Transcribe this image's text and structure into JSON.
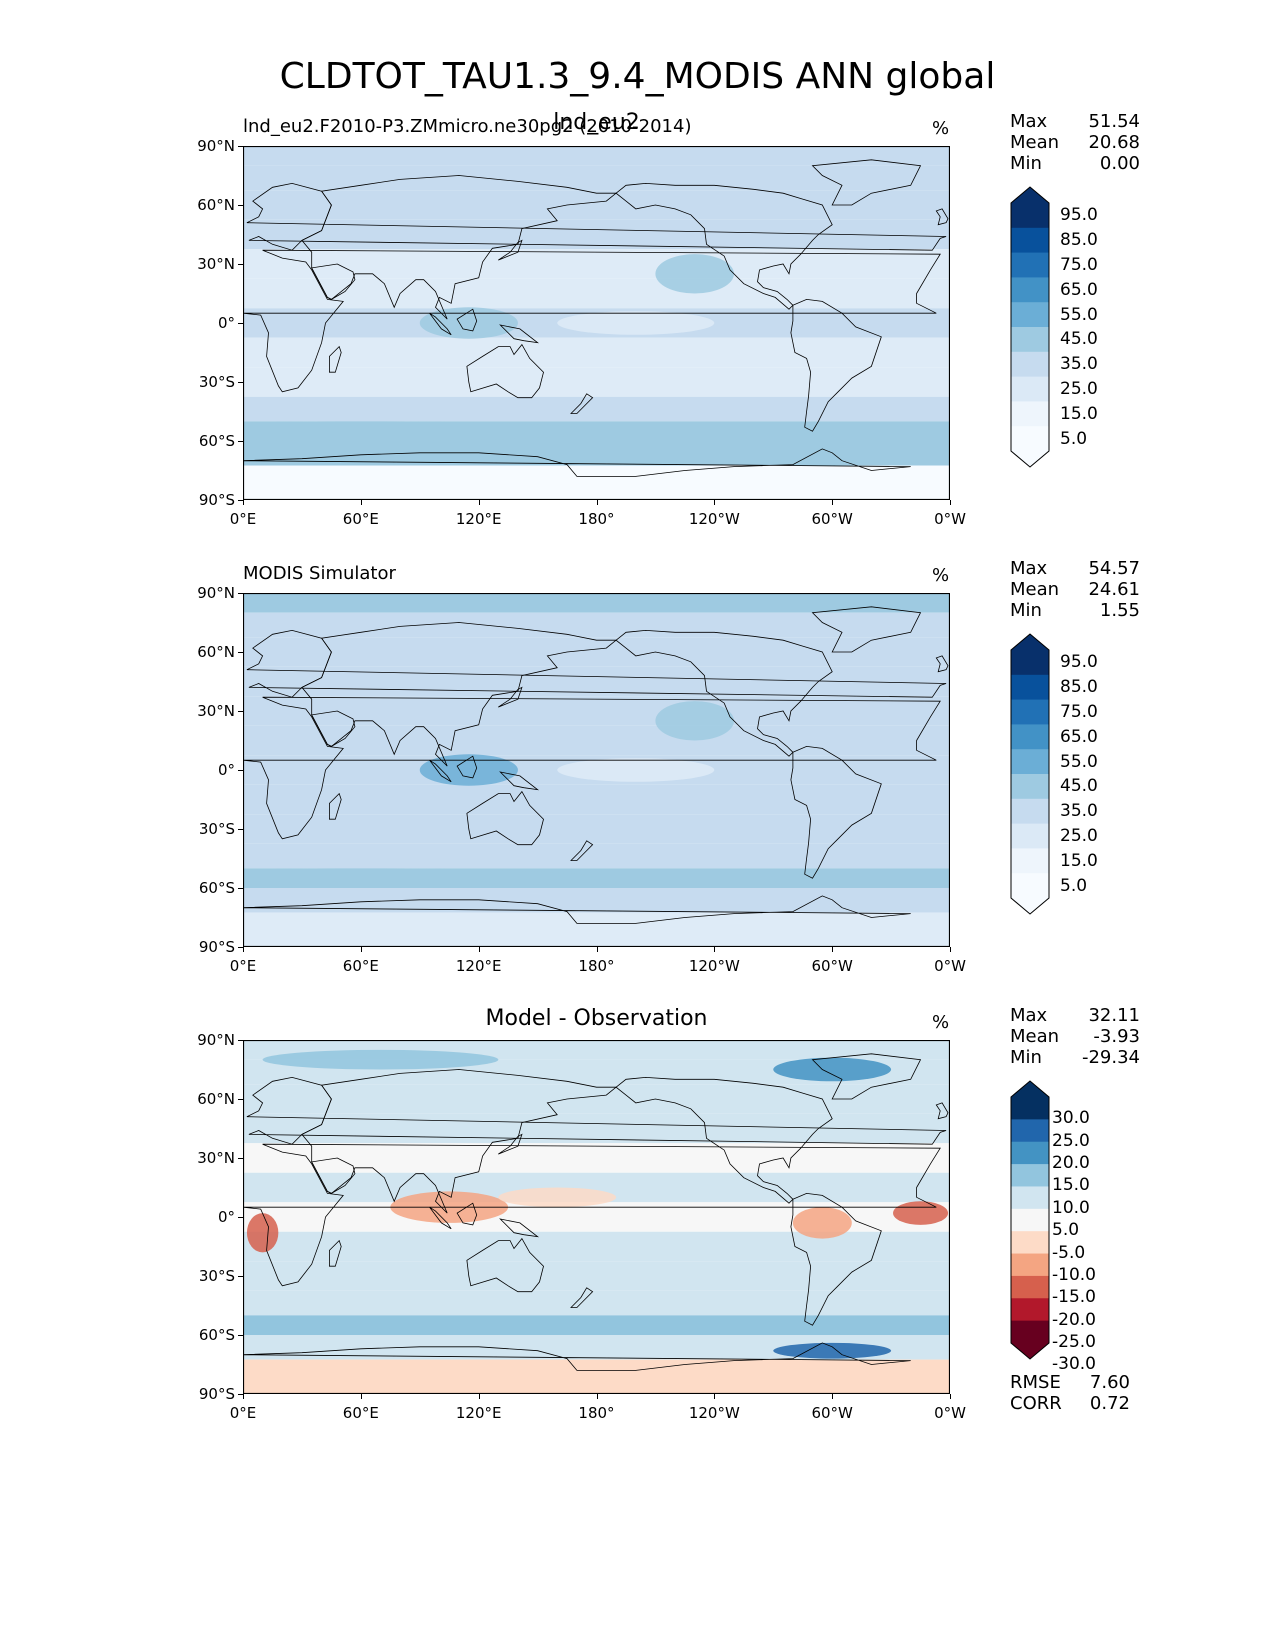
{
  "title": "CLDTOT_TAU1.3_9.4_MODIS ANN global",
  "colors": {
    "sequential_blues": [
      "#f7fbff",
      "#deebf7",
      "#c6dbef",
      "#9ecae1",
      "#6baed6",
      "#4292c6",
      "#2171b5",
      "#08519c",
      "#08306b"
    ],
    "diverging_RdBu": [
      "#67001f",
      "#b2182b",
      "#d6604d",
      "#f4a582",
      "#fddbc7",
      "#f7f7f7",
      "#d1e5f0",
      "#92c5de",
      "#4393c3",
      "#2166ac",
      "#053061"
    ],
    "land_outline": "#000000"
  },
  "panels": [
    {
      "id": "test",
      "left_title": "lnd_eu2.F2010-P3.ZMmicro.ne30pg2 (2010-2014)",
      "center_title": "lnd_eu2",
      "units": "%",
      "stats": {
        "max_label": "Max",
        "max": "51.54",
        "mean_label": "Mean",
        "mean": "20.68",
        "min_label": "Min",
        "min": "0.00"
      },
      "colorbar_labels": [
        "95.0",
        "85.0",
        "75.0",
        "65.0",
        "55.0",
        "45.0",
        "35.0",
        "25.0",
        "15.0",
        "5.0"
      ]
    },
    {
      "id": "reference",
      "left_title": "MODIS Simulator",
      "center_title": "",
      "units": "%",
      "stats": {
        "max_label": "Max",
        "max": "54.57",
        "mean_label": "Mean",
        "mean": "24.61",
        "min_label": "Min",
        "min": "1.55"
      },
      "colorbar_labels": [
        "95.0",
        "85.0",
        "75.0",
        "65.0",
        "55.0",
        "45.0",
        "35.0",
        "25.0",
        "15.0",
        "5.0"
      ]
    },
    {
      "id": "difference",
      "left_title": "",
      "center_title": "Model - Observation",
      "units": "%",
      "stats": {
        "max_label": "Max",
        "max": "32.11",
        "mean_label": "Mean",
        "mean": "-3.93",
        "min_label": "Min",
        "min": "-29.34"
      },
      "colorbar_labels": [
        "30.0",
        "25.0",
        "20.0",
        "15.0",
        "10.0",
        "5.0",
        "-5.0",
        "-10.0",
        "-15.0",
        "-20.0",
        "-25.0",
        "-30.0"
      ],
      "extra_stats": {
        "rmse_label": "RMSE",
        "rmse": "7.60",
        "corr_label": "CORR",
        "corr": "0.72"
      }
    }
  ],
  "axes": {
    "lat_ticks": [
      "90°N",
      "60°N",
      "30°N",
      "0°",
      "30°S",
      "60°S",
      "90°S"
    ],
    "lon_ticks": [
      "0°E",
      "60°E",
      "120°E",
      "180°",
      "120°W",
      "60°W",
      "0°W"
    ]
  },
  "chart_data": [
    {
      "type": "heatmap",
      "title": "lnd_eu2.F2010-P3.ZMmicro.ne30pg2 (2010-2014)",
      "projection": "PlateCarree, central longitude 180",
      "x": "longitude",
      "y": "latitude",
      "xlim": [
        0,
        360
      ],
      "ylim": [
        -90,
        90
      ],
      "levels": [
        0,
        10,
        20,
        30,
        40,
        50,
        60,
        70,
        80,
        90,
        100
      ],
      "units": "%",
      "max": 51.54,
      "mean": 20.68,
      "min": 0.0,
      "zonal_mean_estimate": {
        "lat": [
          85,
          75,
          60,
          45,
          30,
          15,
          0,
          -15,
          -30,
          -45,
          -55,
          -65,
          -80
        ],
        "value": [
          28,
          25,
          24,
          22,
          16,
          19,
          22,
          18,
          17,
          23,
          36,
          32,
          5
        ]
      }
    },
    {
      "type": "heatmap",
      "title": "MODIS Simulator",
      "xlim": [
        0,
        360
      ],
      "ylim": [
        -90,
        90
      ],
      "levels": [
        0,
        10,
        20,
        30,
        40,
        50,
        60,
        70,
        80,
        90,
        100
      ],
      "units": "%",
      "max": 54.57,
      "mean": 24.61,
      "min": 1.55,
      "zonal_mean_estimate": {
        "lat": [
          85,
          75,
          60,
          45,
          30,
          15,
          0,
          -15,
          -30,
          -45,
          -55,
          -65,
          -80
        ],
        "value": [
          30,
          27,
          27,
          26,
          22,
          24,
          28,
          22,
          22,
          28,
          31,
          28,
          18
        ]
      }
    },
    {
      "type": "heatmap",
      "title": "Model - Observation",
      "xlim": [
        0,
        360
      ],
      "ylim": [
        -90,
        90
      ],
      "levels": [
        -35,
        -30,
        -25,
        -20,
        -15,
        -10,
        -5,
        5,
        10,
        15,
        20,
        25,
        30,
        35
      ],
      "units": "%",
      "max": 32.11,
      "mean": -3.93,
      "min": -29.34,
      "rmse": 7.6,
      "corr": 0.72,
      "zonal_mean_estimate": {
        "lat": [
          85,
          75,
          60,
          45,
          30,
          15,
          0,
          -15,
          -30,
          -45,
          -55,
          -65,
          -80
        ],
        "value": [
          -2,
          -2,
          -3,
          -4,
          -6,
          -5,
          -6,
          -4,
          -5,
          -5,
          5,
          4,
          -13
        ]
      }
    }
  ]
}
